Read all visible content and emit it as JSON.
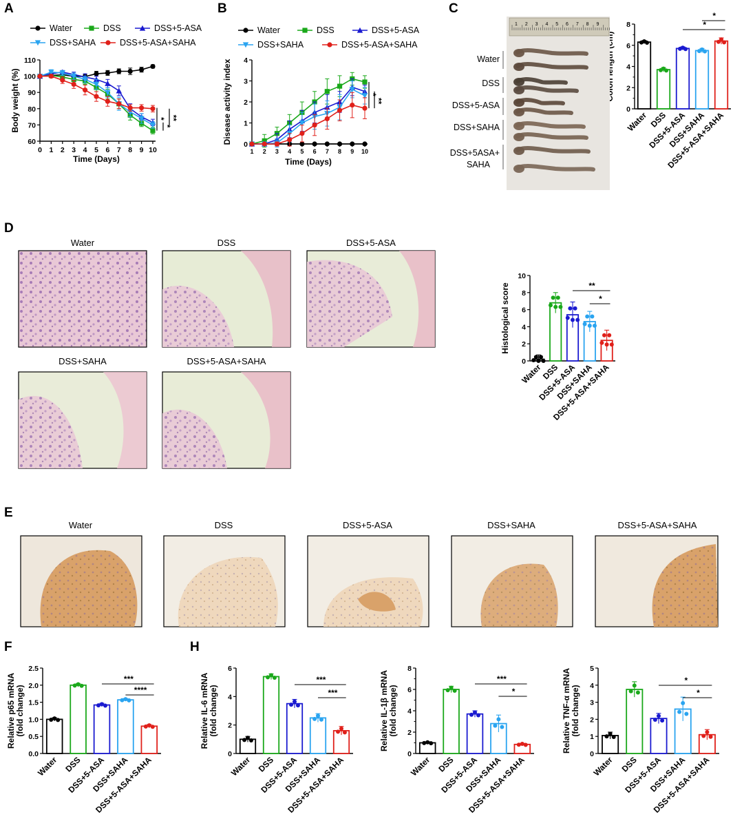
{
  "panel_labels": [
    "A",
    "B",
    "C",
    "D",
    "E",
    "F",
    "H"
  ],
  "colors": {
    "water": "#000000",
    "dss": "#1aa81a",
    "asa": "#1a1ad0",
    "saha": "#2aa4f0",
    "combo": "#e0201a"
  },
  "chart_data": [
    {
      "id": "A",
      "type": "line",
      "xlabel": "Time (Days)",
      "ylabel": "Body weight (%)",
      "ylim": [
        60,
        110
      ],
      "yticks": [
        60,
        70,
        80,
        90,
        100,
        110
      ],
      "x": [
        0,
        1,
        2,
        3,
        4,
        5,
        6,
        7,
        8,
        9,
        10
      ],
      "legend": [
        "Water",
        "DSS",
        "DSS+5-ASA",
        "DSS+SAHA",
        "DSS+5-ASA+SAHA"
      ],
      "series": [
        {
          "name": "Water",
          "color": "#000000",
          "marker": "circle",
          "values": [
            100,
            100.5,
            100.8,
            100,
            99.8,
            101.5,
            102,
            103,
            103,
            104,
            106
          ],
          "errors": [
            0.5,
            0.6,
            1,
            1,
            1.2,
            1.5,
            1.5,
            1.5,
            2,
            1.5,
            1
          ]
        },
        {
          "name": "DSS",
          "color": "#1aa81a",
          "marker": "square",
          "values": [
            100,
            100.5,
            99.5,
            98,
            97,
            93,
            89,
            83,
            76,
            71,
            66.5
          ],
          "errors": [
            0.5,
            1,
            1.5,
            2,
            2,
            2.5,
            3,
            3,
            3,
            2,
            2
          ]
        },
        {
          "name": "DSS+5-ASA",
          "color": "#1a1ad0",
          "marker": "triangle",
          "values": [
            100,
            101.5,
            102.5,
            101,
            99.5,
            98,
            95.5,
            91,
            80,
            75,
            71.5
          ],
          "errors": [
            0.5,
            1,
            1,
            1.5,
            2,
            2,
            2.5,
            3,
            3,
            2,
            2
          ]
        },
        {
          "name": "DSS+SAHA",
          "color": "#2aa4f0",
          "marker": "tri-down",
          "values": [
            100,
            102.5,
            102,
            100,
            98,
            95,
            90,
            83,
            78,
            74,
            70
          ],
          "errors": [
            0.5,
            1.5,
            1.5,
            2,
            2,
            3,
            3,
            4,
            3,
            3,
            2
          ]
        },
        {
          "name": "DSS+5-ASA+SAHA",
          "color": "#e0201a",
          "marker": "circle",
          "values": [
            100,
            100,
            97.5,
            95,
            91.5,
            87.5,
            84.5,
            83,
            80.5,
            80.5,
            80
          ],
          "errors": [
            0.5,
            1,
            2,
            2.5,
            3,
            3,
            3,
            3,
            2,
            2,
            2
          ]
        }
      ],
      "sig": [
        "*",
        "*",
        "**"
      ]
    },
    {
      "id": "B",
      "type": "line",
      "xlabel": "Time (Days)",
      "ylabel": "Disease activity index",
      "ylim": [
        0,
        4
      ],
      "yticks": [
        0,
        1,
        2,
        3,
        4
      ],
      "x": [
        1,
        2,
        3,
        4,
        5,
        6,
        7,
        8,
        9,
        10
      ],
      "legend": [
        "Water",
        "DSS",
        "DSS+5-ASA",
        "DSS+SAHA",
        "DSS+5-ASA+SAHA"
      ],
      "series": [
        {
          "name": "Water",
          "color": "#000000",
          "marker": "circle",
          "values": [
            0,
            0,
            0,
            0,
            0,
            0,
            0,
            0,
            0,
            0
          ],
          "errors": [
            0,
            0,
            0,
            0,
            0,
            0,
            0,
            0,
            0,
            0
          ]
        },
        {
          "name": "DSS",
          "color": "#1aa81a",
          "marker": "square",
          "values": [
            0,
            0.15,
            0.5,
            1,
            1.5,
            2,
            2.5,
            2.75,
            3.1,
            2.95
          ],
          "errors": [
            0,
            0.3,
            0.3,
            0.4,
            0.5,
            0.5,
            0.6,
            0.5,
            0.3,
            0.3
          ]
        },
        {
          "name": "DSS+5-ASA",
          "color": "#1a1ad0",
          "marker": "triangle",
          "values": [
            0,
            0,
            0.2,
            0.7,
            1.1,
            1.5,
            1.75,
            2.0,
            2.7,
            2.5
          ],
          "errors": [
            0,
            0.1,
            0.3,
            0.4,
            0.5,
            0.5,
            0.6,
            0.5,
            0.4,
            0.3
          ]
        },
        {
          "name": "DSS+SAHA",
          "color": "#2aa4f0",
          "marker": "tri-down",
          "values": [
            0,
            0,
            0.05,
            0.5,
            1.0,
            1.3,
            1.45,
            1.75,
            2.6,
            2.3
          ],
          "errors": [
            0,
            0.1,
            0.2,
            0.4,
            0.5,
            0.6,
            0.6,
            0.6,
            0.4,
            0.4
          ]
        },
        {
          "name": "DSS+5-ASA+SAHA",
          "color": "#e0201a",
          "marker": "circle",
          "values": [
            0,
            0,
            0,
            0.2,
            0.5,
            0.9,
            1.2,
            1.6,
            1.85,
            1.7
          ],
          "errors": [
            0,
            0,
            0.1,
            0.3,
            0.4,
            0.5,
            0.5,
            0.5,
            0.6,
            0.5
          ]
        }
      ],
      "sig": [
        "*",
        "**"
      ]
    },
    {
      "id": "C",
      "type": "bar",
      "ylabel": "Colon length (cm)",
      "ylim": [
        0,
        8
      ],
      "yticks": [
        0,
        2,
        4,
        6,
        8
      ],
      "categories": [
        "Water",
        "DSS",
        "DSS+5-ASA",
        "DSS+SAHA",
        "DSS+5-ASA+SAHA"
      ],
      "colors": [
        "#000000",
        "#1aa81a",
        "#1a1ad0",
        "#2aa4f0",
        "#e0201a"
      ],
      "values": [
        6.3,
        3.7,
        5.7,
        5.5,
        6.4
      ],
      "errors": [
        0.15,
        0.2,
        0.15,
        0.2,
        0.3
      ],
      "sig": [
        {
          "from": 3,
          "to": 4,
          "label": "*"
        },
        {
          "from": 2,
          "to": 4,
          "label": "*"
        }
      ]
    },
    {
      "id": "D",
      "type": "bar",
      "ylabel": "Histological score",
      "ylim": [
        0,
        10
      ],
      "yticks": [
        0,
        2,
        4,
        6,
        8,
        10
      ],
      "categories": [
        "Water",
        "DSS",
        "DSS+5-ASA",
        "DSS+SAHA",
        "DSS+5-ASA+SAHA"
      ],
      "colors": [
        "#000000",
        "#1aa81a",
        "#1a1ad0",
        "#2aa4f0",
        "#e0201a"
      ],
      "values": [
        0.2,
        6.8,
        5.4,
        4.6,
        2.4
      ],
      "errors": [
        0.5,
        1.2,
        1.5,
        1.2,
        1.2
      ],
      "sig": [
        {
          "from": 2,
          "to": 4,
          "label": "**"
        },
        {
          "from": 3,
          "to": 4,
          "label": "*"
        }
      ]
    },
    {
      "id": "F",
      "type": "bar",
      "ylabel": [
        "Relative p65 mRNA",
        "(fold change)"
      ],
      "ylim": [
        0,
        2.5
      ],
      "yticks": [
        "0.0",
        "0.5",
        "1.0",
        "1.5",
        "2.0",
        "2.5"
      ],
      "categories": [
        "Water",
        "DSS",
        "DSS+5-ASA",
        "DSS+SAHA",
        "DSS+5-ASA+SAHA"
      ],
      "colors": [
        "#000000",
        "#1aa81a",
        "#1a1ad0",
        "#2aa4f0",
        "#e0201a"
      ],
      "values": [
        1.0,
        2.0,
        1.42,
        1.57,
        0.8
      ],
      "errors": [
        0.05,
        0.05,
        0.05,
        0.04,
        0.05
      ],
      "sig": [
        {
          "from": 2,
          "to": 4,
          "label": "***"
        },
        {
          "from": 3,
          "to": 4,
          "label": "****"
        }
      ]
    },
    {
      "id": "H1",
      "type": "bar",
      "ylabel": [
        "Relative IL-6 mRNA",
        "(fold change)"
      ],
      "ylim": [
        0,
        6
      ],
      "yticks": [
        "0",
        "2",
        "4",
        "6"
      ],
      "categories": [
        "Water",
        "DSS",
        "DSS+5-ASA",
        "DSS+SAHA",
        "DSS+5-ASA+SAHA"
      ],
      "colors": [
        "#000000",
        "#1aa81a",
        "#1a1ad0",
        "#2aa4f0",
        "#e0201a"
      ],
      "values": [
        1.0,
        5.4,
        3.5,
        2.5,
        1.6
      ],
      "errors": [
        0.2,
        0.2,
        0.3,
        0.3,
        0.3
      ],
      "sig": [
        {
          "from": 2,
          "to": 4,
          "label": "***"
        },
        {
          "from": 3,
          "to": 4,
          "label": "***"
        }
      ]
    },
    {
      "id": "H2",
      "type": "bar",
      "ylabel": [
        "Relative IL-1β mRNA",
        "(fold change)"
      ],
      "ylim": [
        0,
        8
      ],
      "yticks": [
        "0",
        "2",
        "4",
        "6",
        "8"
      ],
      "categories": [
        "Water",
        "DSS",
        "DSS+5-ASA",
        "DSS+SAHA",
        "DSS+5-ASA+SAHA"
      ],
      "colors": [
        "#000000",
        "#1aa81a",
        "#1a1ad0",
        "#2aa4f0",
        "#e0201a"
      ],
      "values": [
        1.0,
        6.0,
        3.7,
        2.8,
        0.85
      ],
      "errors": [
        0.1,
        0.3,
        0.3,
        0.8,
        0.1
      ],
      "sig": [
        {
          "from": 2,
          "to": 4,
          "label": "***"
        },
        {
          "from": 3,
          "to": 4,
          "label": "*"
        }
      ]
    },
    {
      "id": "H3",
      "type": "bar",
      "ylabel": [
        "Relative TNF-α mRNA",
        "(fold change)"
      ],
      "ylim": [
        0,
        5
      ],
      "yticks": [
        "0",
        "1",
        "2",
        "3",
        "4",
        "5"
      ],
      "categories": [
        "Water",
        "DSS",
        "DSS+5-ASA",
        "DSS+SAHA",
        "DSS+5-ASA+SAHA"
      ],
      "colors": [
        "#000000",
        "#1aa81a",
        "#1a1ad0",
        "#2aa4f0",
        "#e0201a"
      ],
      "values": [
        1.05,
        3.75,
        2.05,
        2.6,
        1.1
      ],
      "errors": [
        0.2,
        0.45,
        0.3,
        0.7,
        0.3
      ],
      "sig": [
        {
          "from": 2,
          "to": 4,
          "label": "*"
        },
        {
          "from": 3,
          "to": 4,
          "label": "*"
        }
      ]
    }
  ],
  "photo_C": {
    "ruler_numbers": [
      "1",
      "2",
      "3",
      "4",
      "5",
      "6",
      "7",
      "8",
      "9"
    ],
    "rows": [
      "Water",
      "DSS",
      "DSS+5-ASA",
      "DSS+SAHA",
      "DSS+5ASA+",
      "SAHA"
    ]
  },
  "images_D": [
    "Water",
    "DSS",
    "DSS+5-ASA",
    "DSS+SAHA",
    "DSS+5-ASA+SAHA"
  ],
  "images_E": [
    "Water",
    "DSS",
    "DSS+5-ASA",
    "DSS+SAHA",
    "DSS+5-ASA+SAHA"
  ]
}
